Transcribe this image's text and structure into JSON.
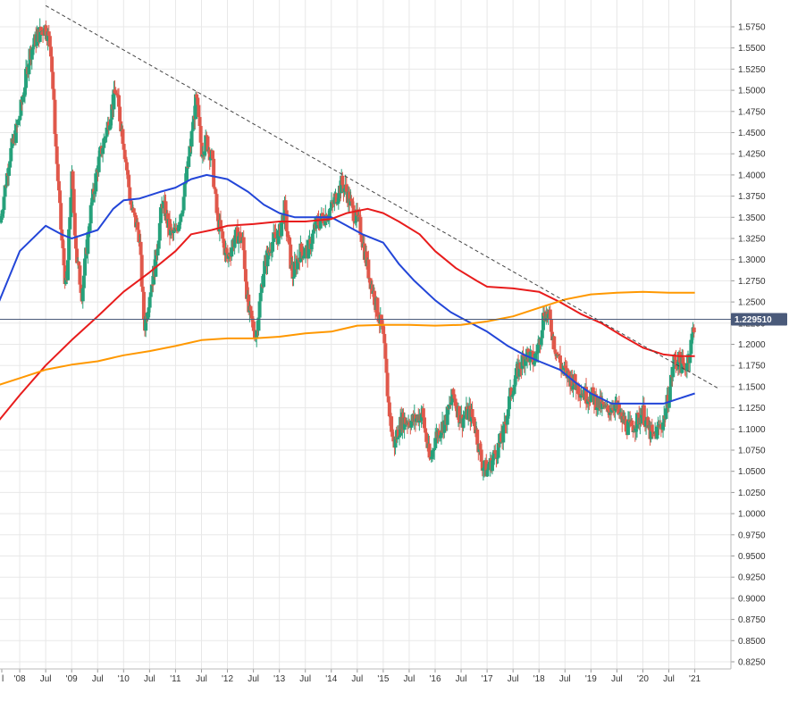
{
  "chart_data": {
    "type": "candlestick",
    "instrument_price_label": "1.229510",
    "current_price": 1.22951,
    "ylim": [
      0.825,
      1.6
    ],
    "y_ticks": [
      "1.5750",
      "1.5500",
      "1.5250",
      "1.5000",
      "1.4750",
      "1.4500",
      "1.4250",
      "1.4000",
      "1.3750",
      "1.3500",
      "1.3250",
      "1.3000",
      "1.2750",
      "1.2500",
      "1.2250",
      "1.2000",
      "1.1750",
      "1.1500",
      "1.1250",
      "1.1000",
      "1.0750",
      "1.0500",
      "1.0250",
      "1.0000",
      "0.9750",
      "0.9500",
      "0.9250",
      "0.9000",
      "0.8750",
      "0.8500",
      "0.8250"
    ],
    "x_ticks": [
      {
        "label": "l",
        "t": 2008.0
      },
      {
        "label": "'08",
        "t": 2008.0
      },
      {
        "label": "Jul",
        "t": 2008.5
      },
      {
        "label": "'09",
        "t": 2009.0
      },
      {
        "label": "Jul",
        "t": 2009.5
      },
      {
        "label": "'10",
        "t": 2010.0
      },
      {
        "label": "Jul",
        "t": 2010.5
      },
      {
        "label": "'11",
        "t": 2011.0
      },
      {
        "label": "Jul",
        "t": 2011.5
      },
      {
        "label": "'12",
        "t": 2012.0
      },
      {
        "label": "Jul",
        "t": 2012.5
      },
      {
        "label": "'13",
        "t": 2013.0
      },
      {
        "label": "Jul",
        "t": 2013.5
      },
      {
        "label": "'14",
        "t": 2014.0
      },
      {
        "label": "Jul",
        "t": 2014.5
      },
      {
        "label": "'15",
        "t": 2015.0
      },
      {
        "label": "Jul",
        "t": 2015.5
      },
      {
        "label": "'16",
        "t": 2016.0
      },
      {
        "label": "Jul",
        "t": 2016.5
      },
      {
        "label": "'17",
        "t": 2017.0
      },
      {
        "label": "Jul",
        "t": 2017.5
      },
      {
        "label": "'18",
        "t": 2018.0
      },
      {
        "label": "Jul",
        "t": 2018.5
      },
      {
        "label": "'19",
        "t": 2019.0
      },
      {
        "label": "Jul",
        "t": 2019.5
      },
      {
        "label": "'20",
        "t": 2020.0
      },
      {
        "label": "Jul",
        "t": 2020.5
      },
      {
        "label": "'21",
        "t": 2021.0
      }
    ],
    "price_path": [
      [
        2007.6,
        1.335
      ],
      [
        2007.8,
        1.42
      ],
      [
        2008.0,
        1.47
      ],
      [
        2008.2,
        1.545
      ],
      [
        2008.35,
        1.565
      ],
      [
        2008.5,
        1.575
      ],
      [
        2008.6,
        1.55
      ],
      [
        2008.7,
        1.43
      ],
      [
        2008.8,
        1.33
      ],
      [
        2008.9,
        1.26
      ],
      [
        2009.0,
        1.4
      ],
      [
        2009.1,
        1.3
      ],
      [
        2009.2,
        1.26
      ],
      [
        2009.35,
        1.35
      ],
      [
        2009.5,
        1.41
      ],
      [
        2009.7,
        1.46
      ],
      [
        2009.85,
        1.5
      ],
      [
        2010.0,
        1.44
      ],
      [
        2010.15,
        1.36
      ],
      [
        2010.3,
        1.33
      ],
      [
        2010.4,
        1.22
      ],
      [
        2010.5,
        1.26
      ],
      [
        2010.6,
        1.29
      ],
      [
        2010.75,
        1.37
      ],
      [
        2010.9,
        1.33
      ],
      [
        2011.0,
        1.33
      ],
      [
        2011.15,
        1.37
      ],
      [
        2011.3,
        1.44
      ],
      [
        2011.4,
        1.49
      ],
      [
        2011.5,
        1.43
      ],
      [
        2011.6,
        1.44
      ],
      [
        2011.7,
        1.42
      ],
      [
        2011.8,
        1.35
      ],
      [
        2012.0,
        1.3
      ],
      [
        2012.1,
        1.32
      ],
      [
        2012.2,
        1.33
      ],
      [
        2012.3,
        1.32
      ],
      [
        2012.4,
        1.24
      ],
      [
        2012.55,
        1.21
      ],
      [
        2012.7,
        1.29
      ],
      [
        2012.85,
        1.32
      ],
      [
        2013.0,
        1.33
      ],
      [
        2013.1,
        1.36
      ],
      [
        2013.25,
        1.28
      ],
      [
        2013.4,
        1.31
      ],
      [
        2013.55,
        1.31
      ],
      [
        2013.7,
        1.34
      ],
      [
        2013.85,
        1.35
      ],
      [
        2014.0,
        1.36
      ],
      [
        2014.2,
        1.39
      ],
      [
        2014.3,
        1.38
      ],
      [
        2014.4,
        1.36
      ],
      [
        2014.55,
        1.34
      ],
      [
        2014.7,
        1.29
      ],
      [
        2014.85,
        1.25
      ],
      [
        2015.0,
        1.21
      ],
      [
        2015.1,
        1.13
      ],
      [
        2015.2,
        1.08
      ],
      [
        2015.35,
        1.11
      ],
      [
        2015.5,
        1.11
      ],
      [
        2015.6,
        1.11
      ],
      [
        2015.75,
        1.12
      ],
      [
        2015.9,
        1.06
      ],
      [
        2016.0,
        1.09
      ],
      [
        2016.2,
        1.11
      ],
      [
        2016.35,
        1.14
      ],
      [
        2016.5,
        1.11
      ],
      [
        2016.65,
        1.12
      ],
      [
        2016.75,
        1.11
      ],
      [
        2016.9,
        1.06
      ],
      [
        2017.0,
        1.05
      ],
      [
        2017.15,
        1.07
      ],
      [
        2017.3,
        1.09
      ],
      [
        2017.45,
        1.14
      ],
      [
        2017.6,
        1.17
      ],
      [
        2017.75,
        1.19
      ],
      [
        2017.9,
        1.18
      ],
      [
        2018.0,
        1.2
      ],
      [
        2018.1,
        1.24
      ],
      [
        2018.2,
        1.23
      ],
      [
        2018.3,
        1.2
      ],
      [
        2018.45,
        1.17
      ],
      [
        2018.6,
        1.16
      ],
      [
        2018.75,
        1.15
      ],
      [
        2018.9,
        1.14
      ],
      [
        2019.0,
        1.14
      ],
      [
        2019.15,
        1.13
      ],
      [
        2019.3,
        1.12
      ],
      [
        2019.45,
        1.13
      ],
      [
        2019.6,
        1.11
      ],
      [
        2019.75,
        1.1
      ],
      [
        2019.9,
        1.11
      ],
      [
        2020.0,
        1.12
      ],
      [
        2020.1,
        1.1
      ],
      [
        2020.2,
        1.09
      ],
      [
        2020.3,
        1.1
      ],
      [
        2020.4,
        1.11
      ],
      [
        2020.5,
        1.14
      ],
      [
        2020.6,
        1.18
      ],
      [
        2020.7,
        1.18
      ],
      [
        2020.8,
        1.17
      ],
      [
        2020.9,
        1.19
      ],
      [
        2021.0,
        1.2295
      ]
    ],
    "moving_averages": [
      {
        "color": "#2346d8",
        "points": [
          [
            2007.6,
            1.25
          ],
          [
            2008.0,
            1.31
          ],
          [
            2008.5,
            1.34
          ],
          [
            2008.8,
            1.33
          ],
          [
            2009.0,
            1.325
          ],
          [
            2009.5,
            1.335
          ],
          [
            2009.8,
            1.36
          ],
          [
            2010.0,
            1.37
          ],
          [
            2010.3,
            1.372
          ],
          [
            2010.7,
            1.38
          ],
          [
            2011.0,
            1.385
          ],
          [
            2011.3,
            1.395
          ],
          [
            2011.6,
            1.4
          ],
          [
            2012.0,
            1.395
          ],
          [
            2012.4,
            1.38
          ],
          [
            2012.7,
            1.365
          ],
          [
            2013.0,
            1.355
          ],
          [
            2013.3,
            1.35
          ],
          [
            2013.7,
            1.35
          ],
          [
            2014.0,
            1.35
          ],
          [
            2014.3,
            1.34
          ],
          [
            2014.6,
            1.33
          ],
          [
            2015.0,
            1.32
          ],
          [
            2015.3,
            1.295
          ],
          [
            2015.6,
            1.275
          ],
          [
            2016.0,
            1.252
          ],
          [
            2016.3,
            1.238
          ],
          [
            2016.6,
            1.228
          ],
          [
            2017.0,
            1.215
          ],
          [
            2017.4,
            1.198
          ],
          [
            2017.7,
            1.188
          ],
          [
            2018.0,
            1.18
          ],
          [
            2018.4,
            1.17
          ],
          [
            2018.7,
            1.155
          ],
          [
            2019.0,
            1.142
          ],
          [
            2019.4,
            1.13
          ],
          [
            2019.7,
            1.13
          ],
          [
            2020.0,
            1.13
          ],
          [
            2020.4,
            1.13
          ],
          [
            2020.7,
            1.136
          ],
          [
            2021.0,
            1.142
          ]
        ]
      },
      {
        "color": "#e81c1c",
        "points": [
          [
            2007.6,
            1.11
          ],
          [
            2008.0,
            1.14
          ],
          [
            2008.5,
            1.175
          ],
          [
            2009.0,
            1.205
          ],
          [
            2009.5,
            1.233
          ],
          [
            2010.0,
            1.262
          ],
          [
            2010.5,
            1.285
          ],
          [
            2011.0,
            1.31
          ],
          [
            2011.3,
            1.33
          ],
          [
            2011.7,
            1.335
          ],
          [
            2012.0,
            1.34
          ],
          [
            2012.5,
            1.342
          ],
          [
            2013.0,
            1.345
          ],
          [
            2013.5,
            1.345
          ],
          [
            2014.0,
            1.348
          ],
          [
            2014.3,
            1.355
          ],
          [
            2014.7,
            1.36
          ],
          [
            2015.0,
            1.355
          ],
          [
            2015.3,
            1.345
          ],
          [
            2015.7,
            1.33
          ],
          [
            2016.0,
            1.31
          ],
          [
            2016.4,
            1.29
          ],
          [
            2016.8,
            1.275
          ],
          [
            2017.0,
            1.268
          ],
          [
            2017.5,
            1.266
          ],
          [
            2018.0,
            1.262
          ],
          [
            2018.4,
            1.25
          ],
          [
            2018.8,
            1.236
          ],
          [
            2019.2,
            1.225
          ],
          [
            2019.6,
            1.21
          ],
          [
            2020.0,
            1.196
          ],
          [
            2020.4,
            1.188
          ],
          [
            2020.7,
            1.186
          ],
          [
            2021.0,
            1.186
          ]
        ]
      },
      {
        "color": "#ff9800",
        "points": [
          [
            2007.6,
            1.152
          ],
          [
            2008.0,
            1.16
          ],
          [
            2008.5,
            1.17
          ],
          [
            2009.0,
            1.176
          ],
          [
            2009.5,
            1.18
          ],
          [
            2010.0,
            1.187
          ],
          [
            2010.5,
            1.192
          ],
          [
            2011.0,
            1.198
          ],
          [
            2011.5,
            1.205
          ],
          [
            2012.0,
            1.207
          ],
          [
            2012.5,
            1.207
          ],
          [
            2013.0,
            1.209
          ],
          [
            2013.5,
            1.213
          ],
          [
            2014.0,
            1.215
          ],
          [
            2014.5,
            1.222
          ],
          [
            2015.0,
            1.223
          ],
          [
            2015.5,
            1.223
          ],
          [
            2016.0,
            1.222
          ],
          [
            2016.5,
            1.223
          ],
          [
            2017.0,
            1.227
          ],
          [
            2017.5,
            1.233
          ],
          [
            2018.0,
            1.243
          ],
          [
            2018.5,
            1.253
          ],
          [
            2019.0,
            1.259
          ],
          [
            2019.5,
            1.261
          ],
          [
            2020.0,
            1.262
          ],
          [
            2020.5,
            1.261
          ],
          [
            2021.0,
            1.261
          ]
        ]
      }
    ],
    "trendline": {
      "from": [
        2008.5,
        1.6
      ],
      "to": [
        2021.45,
        1.148
      ]
    },
    "colors": {
      "up": "#26a17b",
      "down": "#e0584b",
      "grid": "#e8e8e8",
      "axis_text": "#333333",
      "price_tag": "#4a5a7a",
      "trend": "#444444"
    }
  }
}
